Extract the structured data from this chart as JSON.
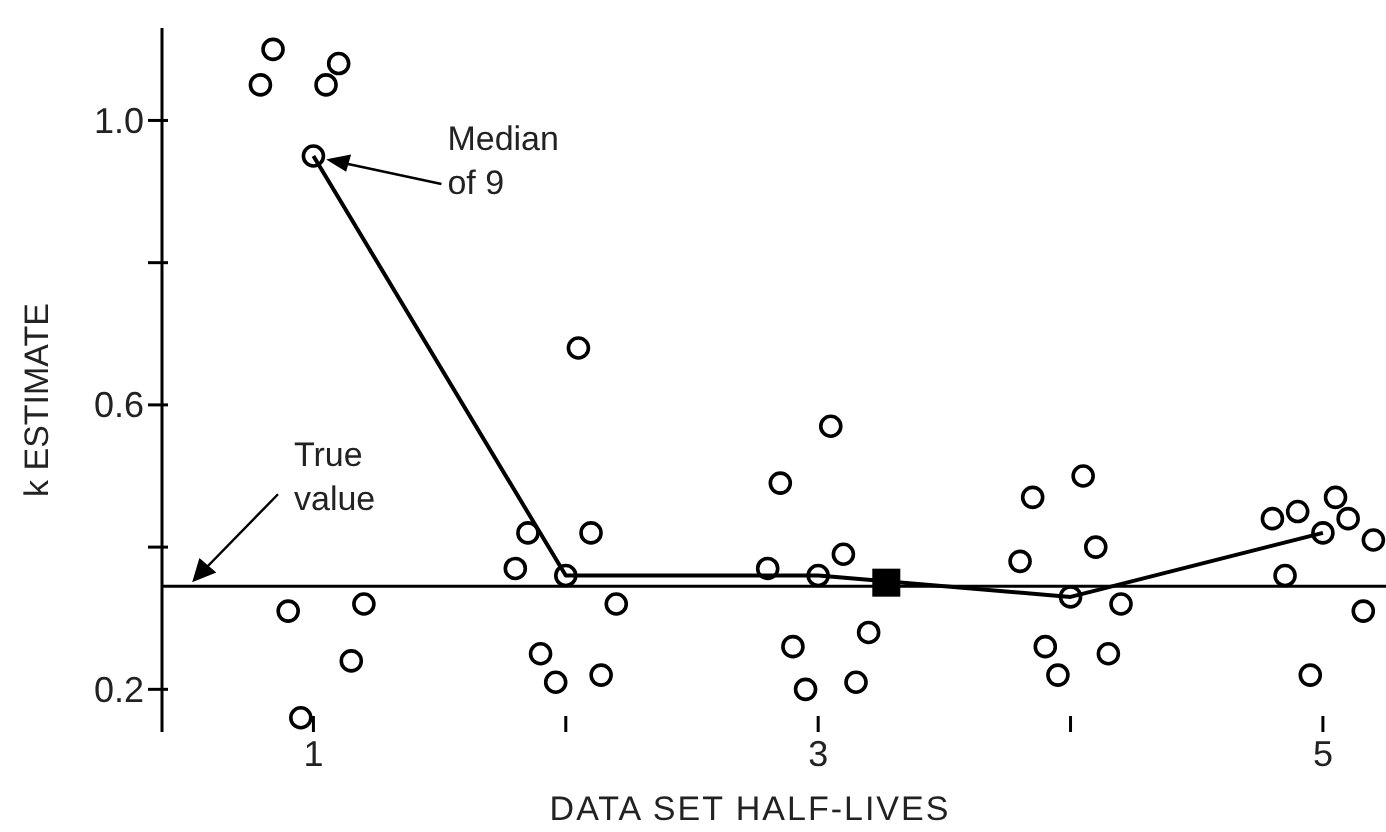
{
  "chart_data": {
    "type": "scatter",
    "xlabel": "DATA SET HALF-LIVES",
    "ylabel": "k ESTIMATE",
    "xlim": [
      0.4,
      5.25
    ],
    "ylim": [
      0.14,
      1.13
    ],
    "xticks": [
      1,
      {
        "value": 2,
        "label": null
      },
      3,
      {
        "value": 4,
        "label": null
      },
      5
    ],
    "yticks": [
      0.2,
      {
        "value": 0.4,
        "label": null
      },
      0.6,
      {
        "value": 0.8,
        "label": null
      },
      {
        "value": 1.0,
        "label": "1.0"
      }
    ],
    "grid": false,
    "annotations": [
      {
        "text": "Median of 9",
        "x": 1,
        "y": 0.95
      }
    ],
    "ref_lines": [
      {
        "axis": "y",
        "value": 0.345,
        "label": "True value",
        "color": "#000000"
      }
    ],
    "series": [
      {
        "type": "scatter",
        "marker": "circle",
        "color": "#000000",
        "x": [
          0.84,
          0.79,
          1.05,
          1.1,
          1.0,
          0.9,
          1.2,
          1.15,
          0.95,
          1.85,
          1.8,
          2.0,
          2.1,
          1.9,
          1.96,
          2.14,
          2.05,
          2.2,
          3.05,
          2.85,
          2.8,
          3.0,
          3.1,
          2.9,
          2.95,
          3.15,
          3.2,
          3.85,
          4.05,
          3.8,
          4.1,
          4.0,
          4.2,
          3.9,
          3.95,
          4.15,
          4.8,
          4.9,
          5.05,
          5.1,
          5.2,
          5.0,
          4.85,
          5.16,
          4.95
        ],
        "values": [
          1.1,
          1.05,
          1.05,
          1.08,
          0.95,
          0.31,
          0.32,
          0.24,
          0.16,
          0.42,
          0.37,
          0.36,
          0.42,
          0.25,
          0.21,
          0.22,
          0.68,
          0.32,
          0.57,
          0.49,
          0.37,
          0.36,
          0.39,
          0.26,
          0.2,
          0.21,
          0.28,
          0.47,
          0.5,
          0.38,
          0.4,
          0.33,
          0.32,
          0.26,
          0.22,
          0.25,
          0.44,
          0.45,
          0.47,
          0.44,
          0.41,
          0.42,
          0.36,
          0.31,
          0.22
        ]
      },
      {
        "type": "line",
        "marker": "none",
        "line_style": "solid",
        "color": "#000000",
        "x": [
          1,
          2,
          3,
          4,
          5
        ],
        "values": [
          0.95,
          0.36,
          0.36,
          0.33,
          0.42
        ]
      },
      {
        "type": "scatter",
        "marker": "square",
        "color": "#000000",
        "x": [
          3.27
        ],
        "values": [
          0.35
        ]
      }
    ]
  }
}
